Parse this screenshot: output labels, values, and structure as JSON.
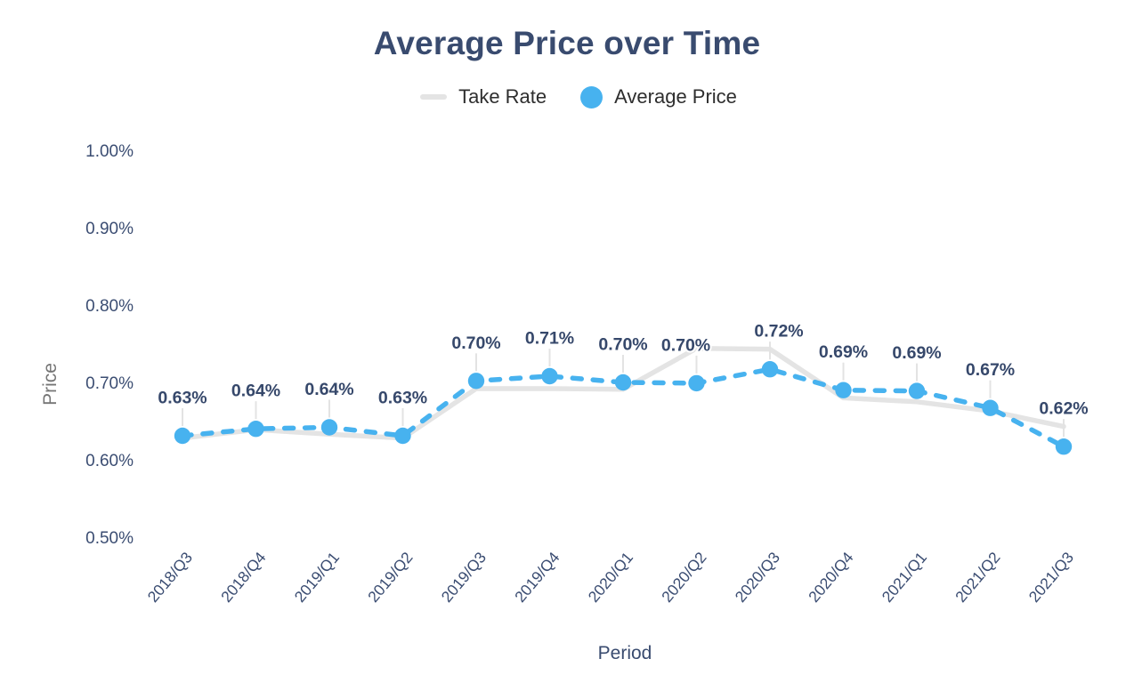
{
  "title": "Average Price over Time",
  "legend": {
    "items": [
      {
        "label": "Take Rate",
        "swatch": "line"
      },
      {
        "label": "Average Price",
        "swatch": "dot"
      }
    ]
  },
  "colors": {
    "background": "#FFFFFF",
    "title_navy": "#394B6F",
    "tick_navy": "#3B4D72",
    "data_label_navy": "#36486B",
    "legend_text": "#2E2E2E",
    "axis_name_gray": "#757575",
    "take_rate_gray": "#E4E4E4",
    "average_price_blue": "#47B2EF",
    "connector_gray": "#E3E3E3"
  },
  "chart_data": {
    "type": "line",
    "title": "Average Price over Time",
    "xlabel": "Period",
    "ylabel": "Price",
    "legend_position": "top",
    "grid": false,
    "categories": [
      "2018/Q3",
      "2018/Q4",
      "2019/Q1",
      "2019/Q2",
      "2019/Q3",
      "2019/Q4",
      "2020/Q1",
      "2020/Q2",
      "2020/Q3",
      "2020/Q4",
      "2021/Q1",
      "2021/Q2",
      "2021/Q3"
    ],
    "y_axis": {
      "tick_labels": [
        "1.00%",
        "0.90%",
        "0.80%",
        "0.70%",
        "0.60%",
        "0.50%"
      ],
      "tick_values": [
        1.0,
        0.9,
        0.8,
        0.7,
        0.6,
        0.5
      ],
      "min": 0.5,
      "max": 1.0,
      "unit": "%"
    },
    "series": [
      {
        "name": "Take Rate",
        "type": "line",
        "style": "solid",
        "color": "#E4E4E4",
        "values": [
          0.628,
          0.639,
          0.633,
          0.628,
          0.692,
          0.692,
          0.691,
          0.744,
          0.743,
          0.68,
          0.675,
          0.663,
          0.643
        ]
      },
      {
        "name": "Average Price",
        "type": "line",
        "style": "dashed",
        "color": "#47B2EF",
        "values": [
          0.631,
          0.64,
          0.642,
          0.631,
          0.702,
          0.708,
          0.7,
          0.699,
          0.717,
          0.69,
          0.689,
          0.667,
          0.617
        ],
        "point_labels": [
          "0.63%",
          "0.64%",
          "0.64%",
          "0.63%",
          "0.70%",
          "0.71%",
          "0.70%",
          "0.70%",
          "0.72%",
          "0.69%",
          "0.69%",
          "0.67%",
          "0.62%"
        ]
      }
    ]
  }
}
